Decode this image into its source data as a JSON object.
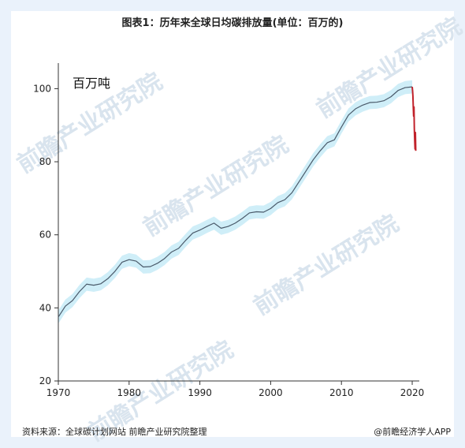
{
  "chart_data": {
    "type": "line",
    "title": "图表1：历年来全球日均碳排放量(单位：百万的)",
    "unit_label": "百万吨",
    "xlim": [
      1970,
      2021
    ],
    "ylim": [
      20,
      107
    ],
    "xticks": [
      1970,
      1980,
      1990,
      2000,
      2010,
      2020
    ],
    "yticks": [
      20,
      40,
      60,
      80,
      100
    ],
    "series": [
      {
        "type": "line",
        "color": "#4a5a6a",
        "points": [
          [
            1970,
            37.5
          ],
          [
            1971,
            40.5
          ],
          [
            1972,
            42.0
          ],
          [
            1973,
            44.5
          ],
          [
            1974,
            46.5
          ],
          [
            1975,
            46.2
          ],
          [
            1976,
            46.6
          ],
          [
            1977,
            48.0
          ],
          [
            1978,
            50.0
          ],
          [
            1979,
            52.5
          ],
          [
            1980,
            53.2
          ],
          [
            1981,
            52.8
          ],
          [
            1982,
            51.2
          ],
          [
            1983,
            51.3
          ],
          [
            1984,
            52.2
          ],
          [
            1985,
            53.5
          ],
          [
            1986,
            55.3
          ],
          [
            1987,
            56.3
          ],
          [
            1988,
            58.5
          ],
          [
            1989,
            60.5
          ],
          [
            1990,
            61.3
          ],
          [
            1991,
            62.3
          ],
          [
            1992,
            63.2
          ],
          [
            1993,
            61.8
          ],
          [
            1994,
            62.3
          ],
          [
            1995,
            63.2
          ],
          [
            1996,
            64.5
          ],
          [
            1997,
            66.0
          ],
          [
            1998,
            66.3
          ],
          [
            1999,
            66.2
          ],
          [
            2000,
            67.2
          ],
          [
            2001,
            68.8
          ],
          [
            2002,
            69.6
          ],
          [
            2003,
            71.5
          ],
          [
            2004,
            74.5
          ],
          [
            2005,
            77.5
          ],
          [
            2006,
            80.5
          ],
          [
            2007,
            83.0
          ],
          [
            2008,
            85.2
          ],
          [
            2009,
            86.0
          ],
          [
            2010,
            89.5
          ],
          [
            2011,
            92.8
          ],
          [
            2012,
            94.5
          ],
          [
            2013,
            95.5
          ],
          [
            2014,
            96.2
          ],
          [
            2015,
            96.3
          ],
          [
            2016,
            96.7
          ],
          [
            2017,
            97.8
          ],
          [
            2018,
            99.5
          ],
          [
            2019,
            100.3
          ],
          [
            2020,
            100.5
          ]
        ],
        "band_color": "#cfeef8",
        "band_halfwidth": 1.8
      },
      {
        "type": "line",
        "color": "#c1222b",
        "points": [
          [
            2020.0,
            100.5
          ],
          [
            2020.05,
            99.5
          ],
          [
            2020.1,
            98.0
          ],
          [
            2020.15,
            95.0
          ],
          [
            2020.2,
            92.5
          ],
          [
            2020.25,
            95.0
          ],
          [
            2020.3,
            89.0
          ],
          [
            2020.35,
            86.0
          ],
          [
            2020.4,
            83.5
          ],
          [
            2020.45,
            88.0
          ],
          [
            2020.5,
            83.0
          ]
        ]
      }
    ]
  },
  "footer": {
    "source": "资料来源：全球碳计划网站 前瞻产业研究院整理",
    "credit": "@前瞻经济学人APP"
  },
  "watermarks": [
    "前瞻产业研究院",
    "前瞻产业研究院",
    "前瞻产业研究院",
    "前瞻产业研究院",
    "前瞻产业研究院"
  ]
}
